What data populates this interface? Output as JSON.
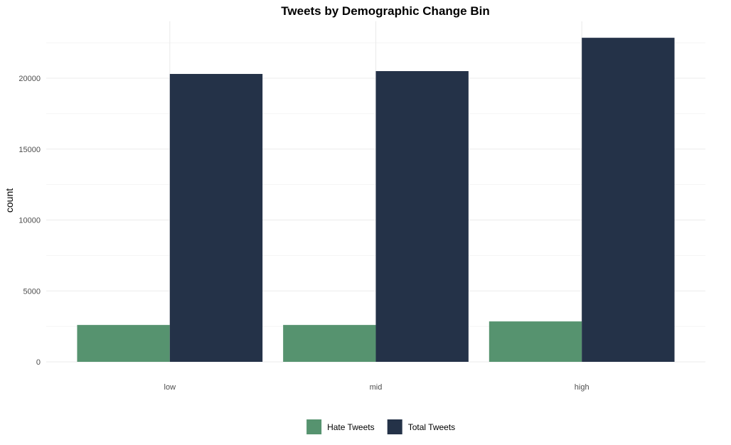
{
  "chart_data": {
    "type": "bar",
    "title": "Tweets by Demographic Change Bin",
    "xlabel": "",
    "ylabel": "count",
    "categories": [
      "low",
      "mid",
      "high"
    ],
    "series": [
      {
        "name": "Hate Tweets",
        "color": "#56936f",
        "values": [
          2600,
          2600,
          2850
        ]
      },
      {
        "name": "Total Tweets",
        "color": "#243248",
        "values": [
          20300,
          20500,
          22850
        ]
      }
    ],
    "ylim": [
      0,
      24000
    ],
    "yticks": [
      0,
      5000,
      10000,
      15000,
      20000
    ],
    "ytick_labels": [
      "0",
      "5000",
      "10000",
      "15000",
      "20000"
    ],
    "grid": true,
    "legend_position": "bottom"
  }
}
